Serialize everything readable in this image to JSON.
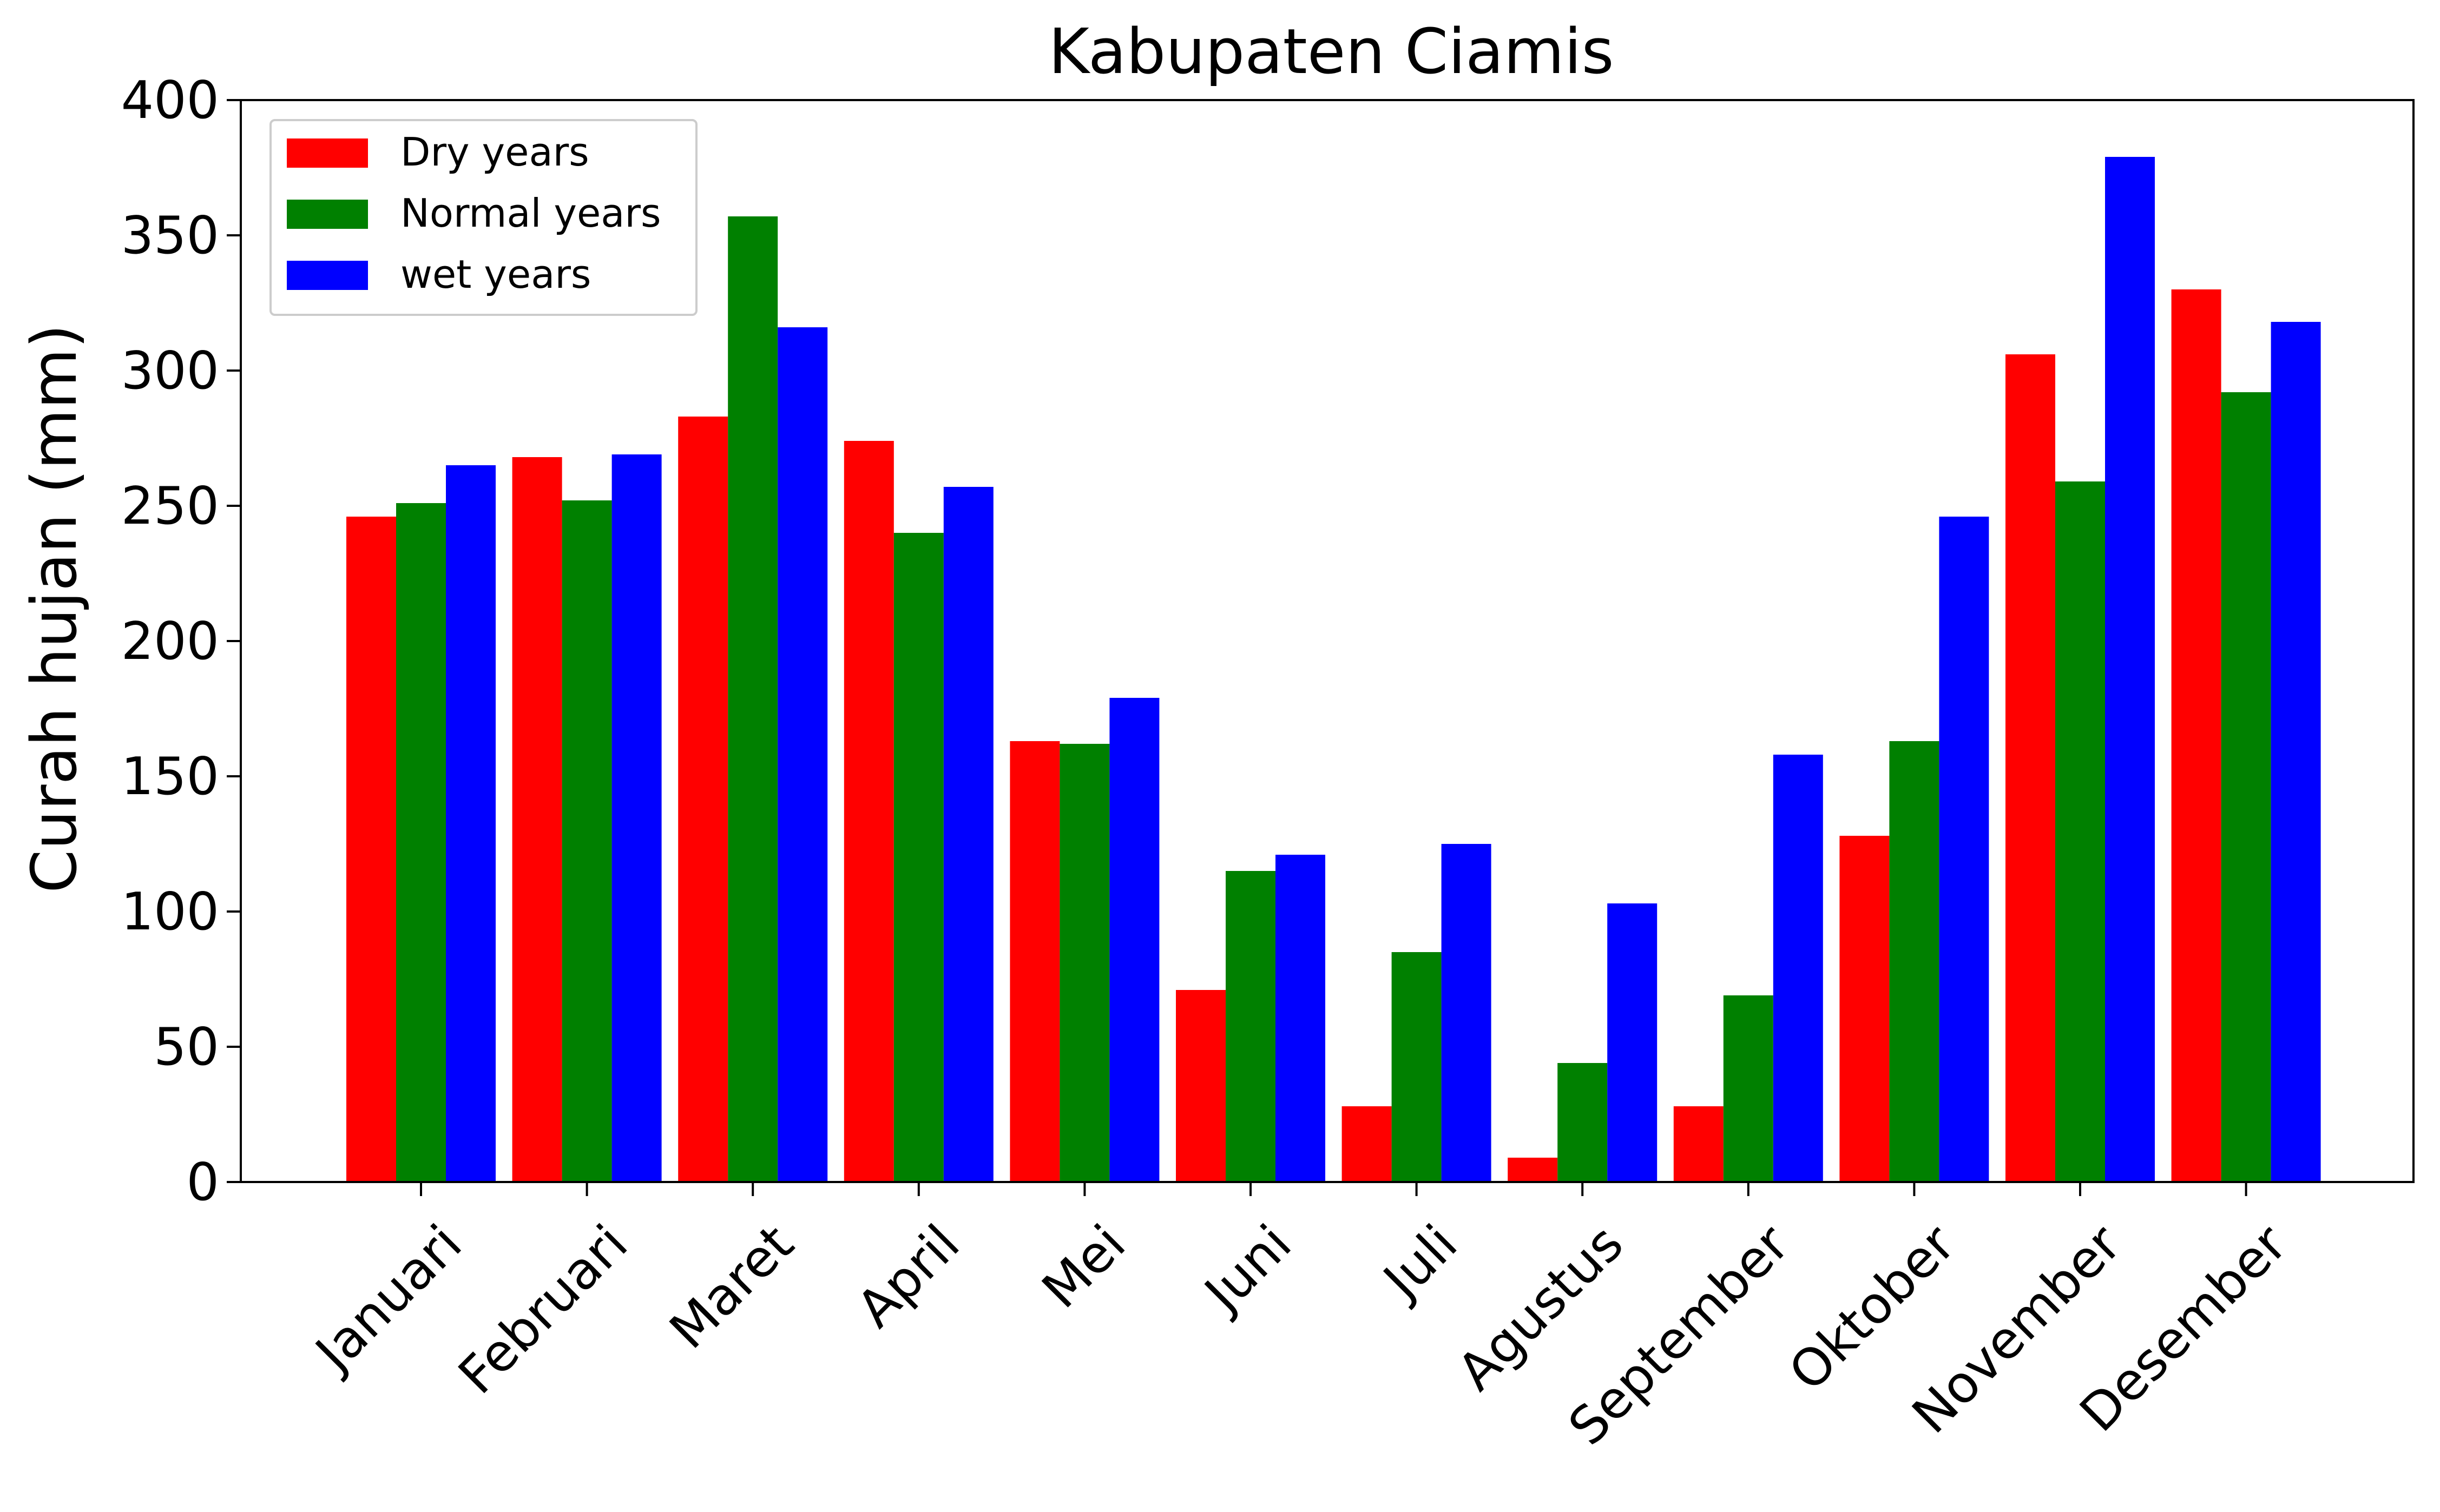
{
  "chart_data": {
    "type": "bar",
    "title": "Kabupaten Ciamis",
    "xlabel": "",
    "ylabel": "Curah hujan (mm)",
    "ylim": [
      0,
      400
    ],
    "yticks": [
      "0",
      "50",
      "100",
      "150",
      "200",
      "250",
      "300",
      "350",
      "400"
    ],
    "categories": [
      "Januari",
      "Februari",
      "Maret",
      "April",
      "Mei",
      "Juni",
      "Juli",
      "Agustus",
      "September",
      "Oktober",
      "November",
      "Desember"
    ],
    "series": [
      {
        "name": "Dry years",
        "color": "#ff0000",
        "values": [
          246,
          268,
          283,
          274,
          163,
          71,
          28,
          9,
          28,
          128,
          306,
          330
        ]
      },
      {
        "name": "Normal years",
        "color": "#008000",
        "values": [
          251,
          252,
          357,
          240,
          162,
          115,
          85,
          44,
          69,
          163,
          259,
          292
        ]
      },
      {
        "name": "wet years",
        "color": "#0000ff",
        "values": [
          265,
          269,
          316,
          257,
          179,
          121,
          125,
          103,
          158,
          246,
          379,
          318
        ]
      }
    ],
    "grid": false,
    "legend": "upper-left"
  }
}
